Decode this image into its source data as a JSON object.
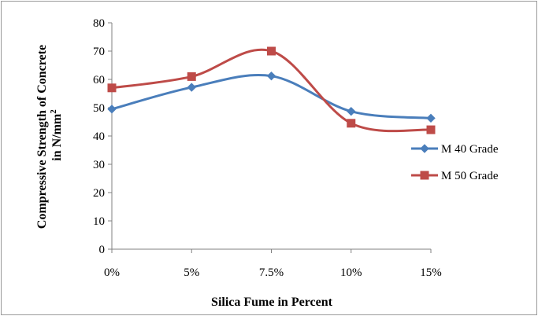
{
  "chart_data": {
    "type": "line",
    "categories": [
      "0%",
      "5%",
      "7.5%",
      "10%",
      "15%"
    ],
    "series": [
      {
        "name": "M 40 Grade",
        "values": [
          49.5,
          57.2,
          61.2,
          48.7,
          46.3
        ],
        "color": "#4a7ebb",
        "marker": "diamond"
      },
      {
        "name": "M 50 Grade",
        "values": [
          57.0,
          61.0,
          70.0,
          44.5,
          42.2
        ],
        "color": "#be4b48",
        "marker": "square"
      }
    ],
    "xlabel": "Silica Fume in Percent",
    "ylabel_line1": "Compressive Strength of Concrete",
    "ylabel_line2": "in N/mm",
    "ylabel_superscript": "2",
    "ylim": [
      0,
      80
    ],
    "yticks": [
      "0",
      "10",
      "20",
      "30",
      "40",
      "50",
      "60",
      "70",
      "80"
    ],
    "grid": false,
    "legend_position": "right",
    "smooth": true
  }
}
